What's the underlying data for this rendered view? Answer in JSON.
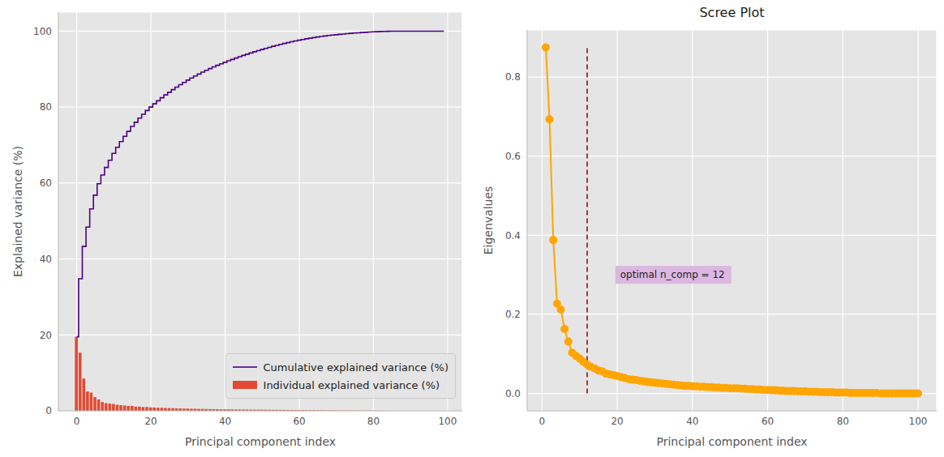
{
  "chart_data": [
    {
      "type": "bar",
      "xlabel": "Principal component index",
      "ylabel": "Explained variance (%)",
      "x": [
        0,
        1,
        2,
        3,
        4,
        5,
        6,
        7,
        8,
        9,
        10,
        11,
        12,
        13,
        14,
        15,
        16,
        17,
        18,
        19,
        20,
        21,
        22,
        23,
        24,
        25,
        26,
        27,
        28,
        29,
        30,
        31,
        32,
        33,
        34,
        35,
        36,
        37,
        38,
        39,
        40,
        41,
        42,
        43,
        44,
        45,
        46,
        47,
        48,
        49,
        50,
        51,
        52,
        53,
        54,
        55,
        56,
        57,
        58,
        59,
        60,
        61,
        62,
        63,
        64,
        65,
        66,
        67,
        68,
        69,
        70,
        71,
        72,
        73,
        74,
        75,
        76,
        77,
        78,
        79,
        80,
        81,
        82,
        83,
        84,
        85,
        86,
        87,
        88,
        89,
        90,
        91,
        92,
        93,
        94,
        95,
        96,
        97,
        98,
        99
      ],
      "series": [
        {
          "name": "Cumulative explained variance (%)",
          "type": "line",
          "line_style": "step",
          "color": "#4b0082",
          "values": [
            19.5,
            34.8,
            43.3,
            48.4,
            53.2,
            56.8,
            59.8,
            62.1,
            64.1,
            66.0,
            67.8,
            69.4,
            70.9,
            72.3,
            73.6,
            74.9,
            76.0,
            77.1,
            78.1,
            79.1,
            80.0,
            80.85,
            81.65,
            82.45,
            83.2,
            83.9,
            84.6,
            85.25,
            85.9,
            86.5,
            87.1,
            87.65,
            88.2,
            88.7,
            89.2,
            89.68,
            90.14,
            90.58,
            91.0,
            91.4,
            91.8,
            92.18,
            92.55,
            92.91,
            93.26,
            93.6,
            93.93,
            94.25,
            94.56,
            94.86,
            95.16,
            95.45,
            95.73,
            96.0,
            96.26,
            96.51,
            96.75,
            96.98,
            97.2,
            97.41,
            97.61,
            97.8,
            97.98,
            98.15,
            98.31,
            98.46,
            98.6,
            98.73,
            98.85,
            98.96,
            99.06,
            99.16,
            99.25,
            99.34,
            99.42,
            99.5,
            99.57,
            99.64,
            99.7,
            99.76,
            99.81,
            99.86,
            99.9,
            99.93,
            99.96,
            99.98,
            99.99,
            100.0,
            100.0,
            100.0,
            100.0,
            100.0,
            100.0,
            100.0,
            100.0,
            100.0,
            100.0,
            100.0,
            100.0,
            100.0
          ]
        },
        {
          "name": "Individual explained variance (%)",
          "type": "bar",
          "color": "#e24a33",
          "values": [
            19.5,
            15.3,
            8.5,
            5.1,
            4.8,
            3.6,
            3.0,
            2.3,
            2.0,
            1.9,
            1.8,
            1.6,
            1.5,
            1.4,
            1.3,
            1.3,
            1.1,
            1.1,
            1.0,
            1.0,
            0.9,
            0.85,
            0.8,
            0.8,
            0.75,
            0.7,
            0.7,
            0.65,
            0.65,
            0.6,
            0.6,
            0.55,
            0.55,
            0.5,
            0.5,
            0.48,
            0.46,
            0.44,
            0.42,
            0.4,
            0.4,
            0.38,
            0.37,
            0.36,
            0.35,
            0.34,
            0.33,
            0.32,
            0.31,
            0.3,
            0.3,
            0.29,
            0.28,
            0.27,
            0.26,
            0.25,
            0.24,
            0.23,
            0.22,
            0.21,
            0.2,
            0.19,
            0.18,
            0.17,
            0.16,
            0.15,
            0.14,
            0.13,
            0.12,
            0.11,
            0.1,
            0.1,
            0.09,
            0.09,
            0.08,
            0.08,
            0.07,
            0.07,
            0.06,
            0.06,
            0.05,
            0.05,
            0.04,
            0.03,
            0.03,
            0.02,
            0.01,
            0.01,
            0,
            0,
            0,
            0,
            0,
            0,
            0,
            0,
            0,
            0,
            0,
            0
          ]
        }
      ],
      "xlim": [
        -4.95,
        103.95
      ],
      "xticks": [
        0,
        20,
        40,
        60,
        80,
        100
      ],
      "ylim": [
        0,
        105
      ],
      "yticks": [
        0,
        20,
        40,
        60,
        80,
        100
      ],
      "grid": true,
      "legend": "lower right"
    },
    {
      "type": "line",
      "title": "Scree Plot",
      "xlabel": "Principal component index",
      "ylabel": "Eigenvalues",
      "x": [
        1,
        2,
        3,
        4,
        5,
        6,
        7,
        8,
        9,
        10,
        11,
        12,
        13,
        14,
        15,
        16,
        17,
        18,
        19,
        20,
        21,
        22,
        23,
        24,
        25,
        26,
        27,
        28,
        29,
        30,
        31,
        32,
        33,
        34,
        35,
        36,
        37,
        38,
        39,
        40,
        41,
        42,
        43,
        44,
        45,
        46,
        47,
        48,
        49,
        50,
        51,
        52,
        53,
        54,
        55,
        56,
        57,
        58,
        59,
        60,
        61,
        62,
        63,
        64,
        65,
        66,
        67,
        68,
        69,
        70,
        71,
        72,
        73,
        74,
        75,
        76,
        77,
        78,
        79,
        80,
        81,
        82,
        83,
        84,
        85,
        86,
        87,
        88,
        89,
        90,
        91,
        92,
        93,
        94,
        95,
        96,
        97,
        98,
        99,
        100
      ],
      "values": [
        0.875,
        0.693,
        0.388,
        0.227,
        0.212,
        0.163,
        0.131,
        0.103,
        0.095,
        0.088,
        0.08,
        0.073,
        0.067,
        0.063,
        0.058,
        0.056,
        0.05,
        0.048,
        0.046,
        0.044,
        0.041,
        0.039,
        0.036,
        0.035,
        0.034,
        0.032,
        0.031,
        0.029,
        0.028,
        0.027,
        0.026,
        0.025,
        0.024,
        0.023,
        0.022,
        0.021,
        0.02,
        0.019,
        0.019,
        0.018,
        0.018,
        0.017,
        0.017,
        0.016,
        0.016,
        0.015,
        0.015,
        0.014,
        0.014,
        0.013,
        0.013,
        0.013,
        0.012,
        0.012,
        0.011,
        0.011,
        0.01,
        0.01,
        0.009,
        0.009,
        0.008,
        0.008,
        0.007,
        0.007,
        0.006,
        0.006,
        0.006,
        0.005,
        0.005,
        0.005,
        0.004,
        0.004,
        0.004,
        0.003,
        0.003,
        0.003,
        0.003,
        0.002,
        0.002,
        0.002,
        0.002,
        0.001,
        0.001,
        0.001,
        0.001,
        0.001,
        0.001,
        0.001,
        0.001,
        0,
        0,
        0,
        0,
        0,
        0,
        0,
        0,
        0,
        0,
        0
      ],
      "color": "#ffa500",
      "marker": "o",
      "line_style": "solid",
      "xlim": [
        -3.95,
        104.95
      ],
      "xticks": [
        0,
        20,
        40,
        60,
        80,
        100
      ],
      "ylim": [
        -0.044,
        0.919
      ],
      "yticks": [
        {
          "value": 0,
          "label": "0.0"
        },
        0.2,
        0.4,
        0.6,
        0.8
      ],
      "grid": true,
      "annotations": [
        {
          "type": "vline",
          "x": 12,
          "ymin": 0,
          "ymax": 0.875,
          "color": "#8b0000",
          "line_style": "dashed"
        },
        {
          "type": "text",
          "text": "optimal n_comp = 12",
          "x": 19.5,
          "y": 0.3
        }
      ]
    }
  ]
}
